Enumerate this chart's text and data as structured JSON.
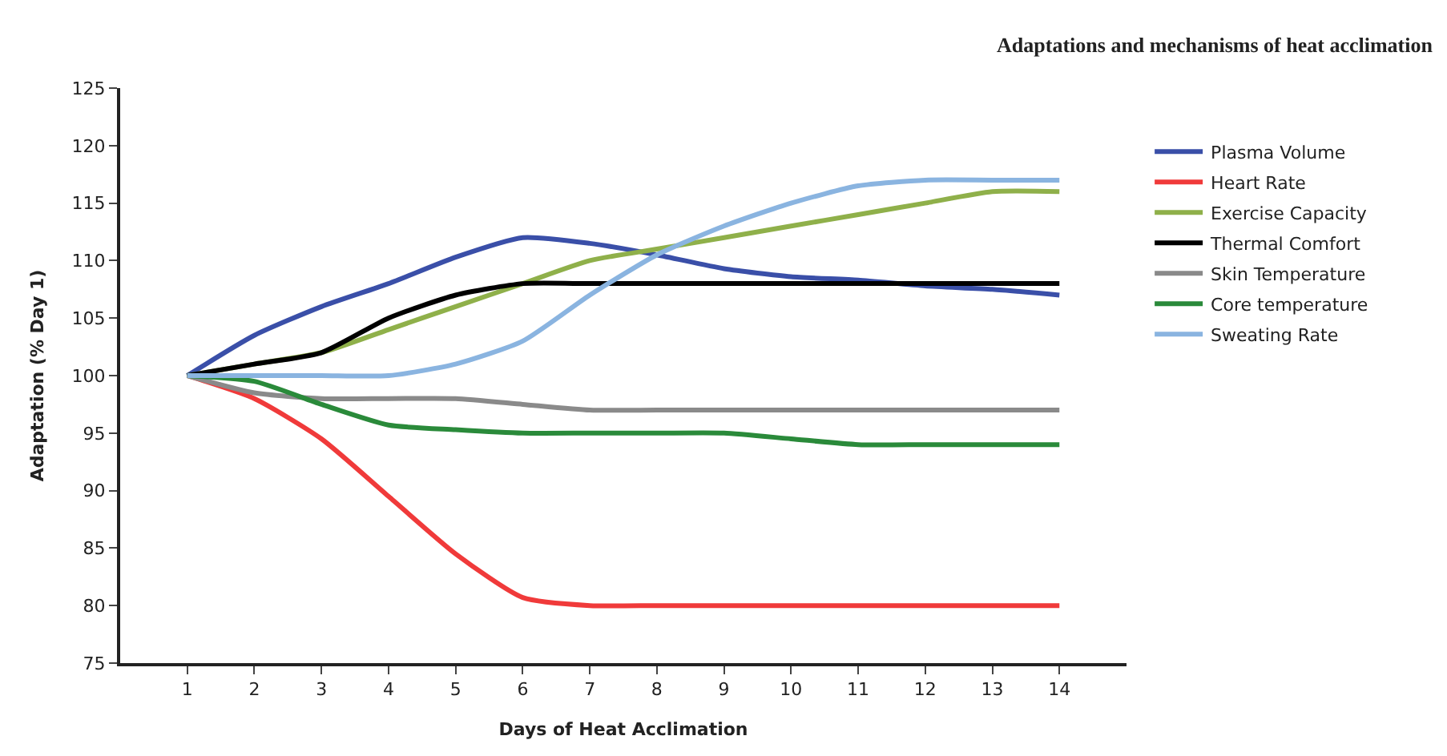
{
  "chart_data": {
    "type": "line",
    "title": "Adaptations and mechanisms of heat acclimation",
    "xlabel": "Days of Heat Acclimation",
    "ylabel": "Adaptation (% Day 1)",
    "x": [
      1,
      2,
      3,
      4,
      5,
      6,
      7,
      8,
      9,
      10,
      11,
      12,
      13,
      14
    ],
    "xlim": [
      0,
      15
    ],
    "xticks": [
      1,
      2,
      3,
      4,
      5,
      6,
      7,
      8,
      9,
      10,
      11,
      12,
      13,
      14
    ],
    "ylim": [
      75,
      125
    ],
    "yticks": [
      75,
      80,
      85,
      90,
      95,
      100,
      105,
      110,
      115,
      120,
      125
    ],
    "legend": "right",
    "marker": "none",
    "line_style": "solid",
    "series": [
      {
        "name": "Plasma Volume",
        "color": "#3a4fa8",
        "values": [
          100,
          103.5,
          106,
          108,
          110.3,
          112,
          111.5,
          110.5,
          109.3,
          108.6,
          108.3,
          107.8,
          107.5,
          107
        ]
      },
      {
        "name": "Heart Rate",
        "color": "#f03a3a",
        "values": [
          100,
          98,
          94.5,
          89.5,
          84.5,
          80.7,
          80,
          80,
          80,
          80,
          80,
          80,
          80,
          80
        ]
      },
      {
        "name": "Exercise Capacity",
        "color": "#8fb04a",
        "values": [
          100,
          101,
          102,
          104,
          106,
          108,
          110,
          111,
          112,
          113,
          114,
          115,
          116,
          116
        ]
      },
      {
        "name": "Thermal Comfort",
        "color": "#000000",
        "values": [
          100,
          101,
          102,
          105,
          107,
          108,
          108,
          108,
          108,
          108,
          108,
          108,
          108,
          108
        ]
      },
      {
        "name": "Skin Temperature",
        "color": "#8a8a8a",
        "values": [
          100,
          98.5,
          98,
          98,
          98,
          97.5,
          97,
          97,
          97,
          97,
          97,
          97,
          97,
          97
        ]
      },
      {
        "name": "Core temperature",
        "color": "#2a8a3a",
        "values": [
          100,
          99.5,
          97.5,
          95.7,
          95.3,
          95,
          95,
          95,
          95,
          94.5,
          94,
          94,
          94,
          94
        ]
      },
      {
        "name": "Sweating Rate",
        "color": "#8ab4e0",
        "values": [
          100,
          100,
          100,
          100,
          101,
          103,
          107,
          110.5,
          113,
          115,
          116.5,
          117,
          117,
          117
        ]
      }
    ]
  }
}
